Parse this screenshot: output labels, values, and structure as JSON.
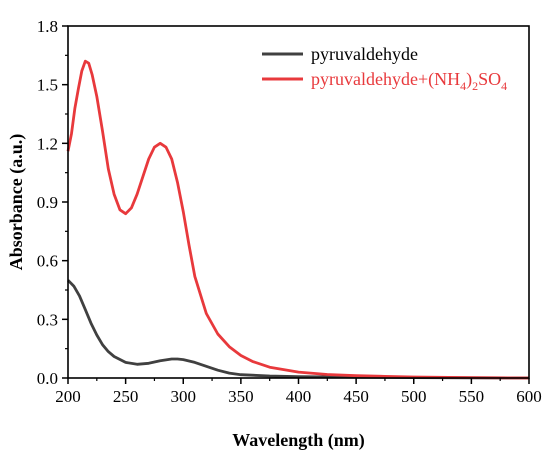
{
  "chart_data": {
    "type": "line",
    "title": "",
    "xlabel": "Wavelength (nm)",
    "ylabel": "Absorbance (a.u.)",
    "xlim": [
      200,
      600
    ],
    "ylim": [
      0,
      1.8
    ],
    "xticks": [
      200,
      250,
      300,
      350,
      400,
      450,
      500,
      550,
      600
    ],
    "xtick_labels": [
      "200",
      "250",
      "300",
      "350",
      "400",
      "450",
      "500",
      "550",
      "600"
    ],
    "yticks": [
      0,
      0.3,
      0.6,
      0.9,
      1.2,
      1.5,
      1.8
    ],
    "ytick_labels": [
      "0.0",
      "0.3",
      "0.6",
      "0.9",
      "1.2",
      "1.5",
      "1.8"
    ],
    "grid": false,
    "legend_position": "top-right",
    "legend": {
      "series1_label": "pyruvaldehyde",
      "series2_base": "pyruvaldehyde+(NH",
      "series2_sub1": "4",
      "series2_mid": ")",
      "series2_sub2": "2",
      "series2_end": "SO",
      "series2_sub3": "4"
    },
    "series": [
      {
        "name": "pyruvaldehyde",
        "color": "#404040",
        "x": [
          200,
          205,
          210,
          215,
          220,
          225,
          230,
          235,
          240,
          250,
          260,
          270,
          280,
          290,
          295,
          300,
          310,
          320,
          330,
          340,
          350,
          375,
          400,
          450,
          500,
          550,
          600
        ],
        "y": [
          0.5,
          0.47,
          0.42,
          0.35,
          0.28,
          0.22,
          0.17,
          0.135,
          0.11,
          0.08,
          0.07,
          0.075,
          0.088,
          0.097,
          0.097,
          0.094,
          0.08,
          0.06,
          0.04,
          0.025,
          0.017,
          0.01,
          0.007,
          0.004,
          0.002,
          0.001,
          0.0
        ]
      },
      {
        "name": "pyruvaldehyde+(NH4)2SO4",
        "color": "#e8393c",
        "x": [
          200,
          203,
          206,
          209,
          212,
          215,
          218,
          221,
          225,
          230,
          235,
          240,
          245,
          250,
          255,
          260,
          265,
          270,
          275,
          280,
          285,
          290,
          295,
          300,
          305,
          310,
          320,
          330,
          340,
          350,
          360,
          375,
          400,
          425,
          450,
          475,
          500,
          550,
          600
        ],
        "y": [
          1.16,
          1.25,
          1.38,
          1.48,
          1.57,
          1.62,
          1.61,
          1.55,
          1.44,
          1.26,
          1.07,
          0.94,
          0.86,
          0.84,
          0.87,
          0.94,
          1.03,
          1.12,
          1.18,
          1.2,
          1.18,
          1.12,
          1.0,
          0.85,
          0.68,
          0.52,
          0.33,
          0.225,
          0.16,
          0.115,
          0.085,
          0.055,
          0.03,
          0.018,
          0.012,
          0.008,
          0.005,
          0.002,
          0.0
        ]
      }
    ]
  }
}
